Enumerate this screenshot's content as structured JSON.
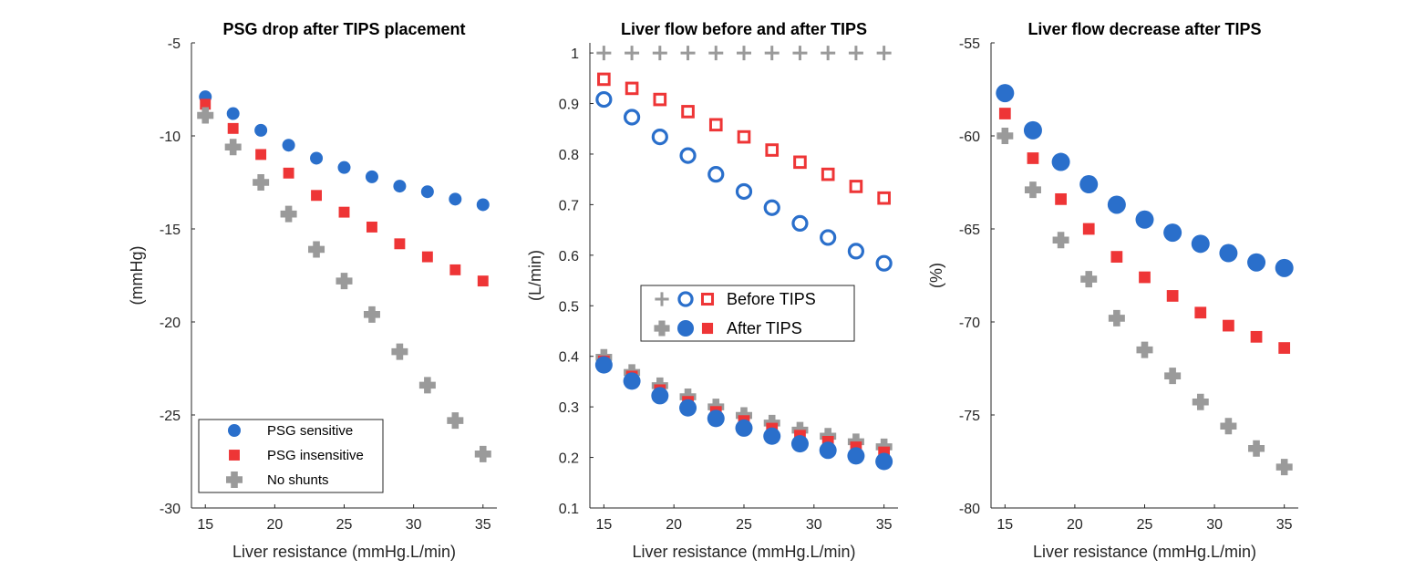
{
  "colors": {
    "blue": "#2a6fcb",
    "red": "#ee3536",
    "gray": "#9a9a9a"
  },
  "chart_data": [
    {
      "type": "scatter",
      "title": "PSG drop after TIPS placement",
      "xlabel": "Liver resistance (mmHg.L/min)",
      "ylabel": "(mmHg)",
      "xlim": [
        14,
        36
      ],
      "ylim": [
        -30,
        -5
      ],
      "xticks": [
        15,
        20,
        25,
        30,
        35
      ],
      "yticks": [
        -30,
        -25,
        -20,
        -15,
        -10,
        -5
      ],
      "x": [
        15,
        17,
        19,
        21,
        23,
        25,
        27,
        29,
        31,
        33,
        35
      ],
      "legend": {
        "placement": "bottom-left"
      },
      "series": [
        {
          "name": "PSG sensitive",
          "marker": "circle",
          "color": "#2a6fcb",
          "values": [
            -7.9,
            -8.8,
            -9.7,
            -10.5,
            -11.2,
            -11.7,
            -12.2,
            -12.7,
            -13.0,
            -13.4,
            -13.7
          ]
        },
        {
          "name": "PSG insensitive",
          "marker": "square",
          "color": "#ee3536",
          "values": [
            -8.3,
            -9.6,
            -11.0,
            -12.0,
            -13.2,
            -14.1,
            -14.9,
            -15.8,
            -16.5,
            -17.2,
            -17.8
          ]
        },
        {
          "name": "No shunts",
          "marker": "cross",
          "color": "#9a9a9a",
          "values": [
            -8.9,
            -10.6,
            -12.5,
            -14.2,
            -16.1,
            -17.8,
            -19.6,
            -21.6,
            -23.4,
            -25.3,
            -27.1
          ]
        }
      ]
    },
    {
      "type": "scatter",
      "title": "Liver flow before and after TIPS",
      "xlabel": "Liver resistance (mmHg.L/min)",
      "ylabel": "(L/min)",
      "xlim": [
        14,
        36
      ],
      "ylim": [
        0.1,
        1.02
      ],
      "xticks": [
        15,
        20,
        25,
        30,
        35
      ],
      "yticks": [
        0.1,
        0.2,
        0.3,
        0.4,
        0.5,
        0.6,
        0.7,
        0.8,
        0.9,
        1
      ],
      "x": [
        15,
        17,
        19,
        21,
        23,
        25,
        27,
        29,
        31,
        33,
        35
      ],
      "legend": {
        "placement": "center"
      },
      "series": [
        {
          "group": "Before TIPS",
          "marker": "plus",
          "color": "#9a9a9a",
          "values": [
            1,
            1,
            1,
            1,
            1,
            1,
            1,
            1,
            1,
            1,
            1
          ]
        },
        {
          "group": "Before TIPS",
          "marker": "circle-open",
          "color": "#2a6fcb",
          "values": [
            0.908,
            0.873,
            0.834,
            0.797,
            0.76,
            0.726,
            0.694,
            0.663,
            0.635,
            0.608,
            0.584
          ]
        },
        {
          "group": "Before TIPS",
          "marker": "square-open",
          "color": "#ee3536",
          "values": [
            0.948,
            0.93,
            0.908,
            0.884,
            0.858,
            0.834,
            0.808,
            0.784,
            0.76,
            0.736,
            0.713
          ]
        },
        {
          "group": "After TIPS",
          "marker": "cross",
          "color": "#9a9a9a",
          "values": [
            0.398,
            0.368,
            0.342,
            0.32,
            0.3,
            0.283,
            0.268,
            0.254,
            0.242,
            0.231,
            0.221
          ]
        },
        {
          "group": "After TIPS",
          "marker": "square",
          "color": "#ee3536",
          "values": [
            0.39,
            0.36,
            0.333,
            0.31,
            0.29,
            0.272,
            0.257,
            0.243,
            0.231,
            0.22,
            0.21
          ]
        },
        {
          "group": "After TIPS",
          "marker": "circle",
          "color": "#2a6fcb",
          "values": [
            0.383,
            0.351,
            0.322,
            0.298,
            0.277,
            0.258,
            0.242,
            0.227,
            0.214,
            0.203,
            0.192
          ]
        }
      ],
      "legend_entries": [
        {
          "label": "Before TIPS",
          "markers": [
            "plus",
            "circle-open",
            "square-open"
          ]
        },
        {
          "label": "After TIPS",
          "markers": [
            "cross",
            "circle",
            "square"
          ]
        }
      ]
    },
    {
      "type": "scatter",
      "title": "Liver flow decrease after TIPS",
      "xlabel": "Liver resistance (mmHg.L/min)",
      "ylabel": "(%)",
      "xlim": [
        14,
        36
      ],
      "ylim": [
        -80,
        -55
      ],
      "xticks": [
        15,
        20,
        25,
        30,
        35
      ],
      "yticks": [
        -80,
        -75,
        -70,
        -65,
        -60,
        -55
      ],
      "x": [
        15,
        17,
        19,
        21,
        23,
        25,
        27,
        29,
        31,
        33,
        35
      ],
      "series": [
        {
          "marker": "circle",
          "color": "#2a6fcb",
          "values": [
            -57.7,
            -59.7,
            -61.4,
            -62.6,
            -63.7,
            -64.5,
            -65.2,
            -65.8,
            -66.3,
            -66.8,
            -67.1
          ]
        },
        {
          "marker": "square",
          "color": "#ee3536",
          "values": [
            -58.8,
            -61.2,
            -63.4,
            -65.0,
            -66.5,
            -67.6,
            -68.6,
            -69.5,
            -70.2,
            -70.8,
            -71.4
          ]
        },
        {
          "marker": "cross",
          "color": "#9a9a9a",
          "values": [
            -60.0,
            -62.9,
            -65.6,
            -67.7,
            -69.8,
            -71.5,
            -72.9,
            -74.3,
            -75.6,
            -76.8,
            -77.8
          ]
        }
      ]
    }
  ]
}
